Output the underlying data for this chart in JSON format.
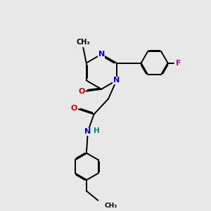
{
  "bg_color": "#e8e8e8",
  "bond_color": "#000000",
  "N_color": "#0000cc",
  "O_color": "#cc0000",
  "F_color": "#cc00cc",
  "H_color": "#008080",
  "lw": 1.4,
  "dbo": 0.055,
  "xlim": [
    0,
    10
  ],
  "ylim": [
    -1,
    9
  ]
}
